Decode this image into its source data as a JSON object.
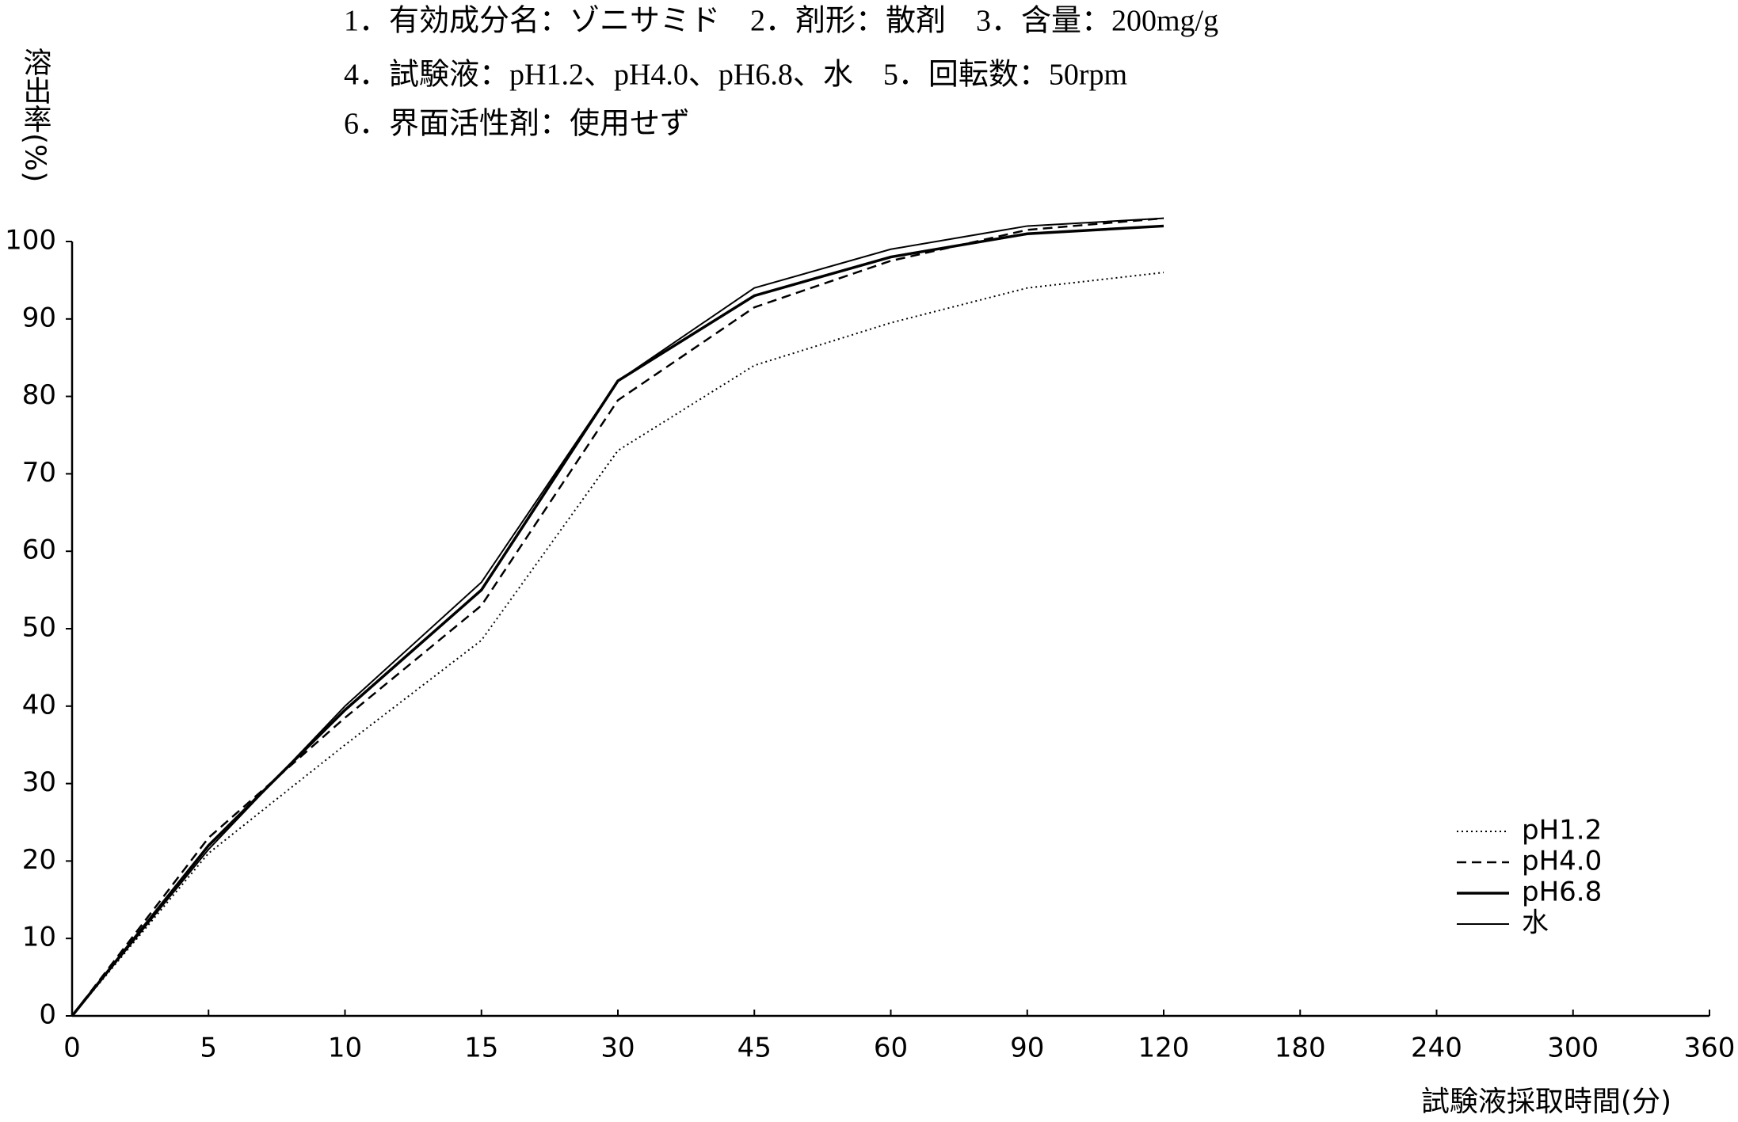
{
  "chart_data": {
    "type": "line",
    "title_lines": [
      "1．有効成分名：ゾニサミド　2．剤形：散剤　3．含量：200mg/g",
      "4．試験液：pH1.2、pH4.0、pH6.8、水　5．回転数：50rpm",
      "6．界面活性剤：使用せず"
    ],
    "y_label": "溶出率(%)",
    "x_label": "試験液採取時間(分)",
    "categories": [
      "0",
      "5",
      "10",
      "15",
      "30",
      "45",
      "60",
      "90",
      "120",
      "180",
      "240",
      "300",
      "360"
    ],
    "series": [
      {
        "name": "pH1.2",
        "color": "#000000",
        "style": "dotted",
        "values": [
          0,
          21,
          35,
          48.5,
          73,
          84,
          89.5,
          94,
          96,
          null,
          null,
          null,
          null
        ]
      },
      {
        "name": "pH4.0",
        "color": "#000000",
        "style": "dashed",
        "values": [
          0,
          23,
          38.5,
          53,
          79.5,
          91.5,
          97.5,
          101.5,
          103,
          null,
          null,
          null,
          null
        ]
      },
      {
        "name": "pH6.8",
        "color": "#000000",
        "style": "solid-thick",
        "values": [
          0,
          22,
          39.5,
          55,
          82,
          93,
          98,
          101,
          102,
          null,
          null,
          null,
          null
        ]
      },
      {
        "name": "水",
        "color": "#000000",
        "style": "solid",
        "values": [
          0,
          21.5,
          40,
          56,
          82,
          94,
          99,
          102,
          103,
          null,
          null,
          null,
          null
        ]
      }
    ],
    "ylim": [
      0,
      100
    ],
    "yticks": [
      0,
      10,
      20,
      30,
      40,
      50,
      60,
      70,
      80,
      90,
      100
    ],
    "grid": false,
    "legend": "lower right"
  }
}
